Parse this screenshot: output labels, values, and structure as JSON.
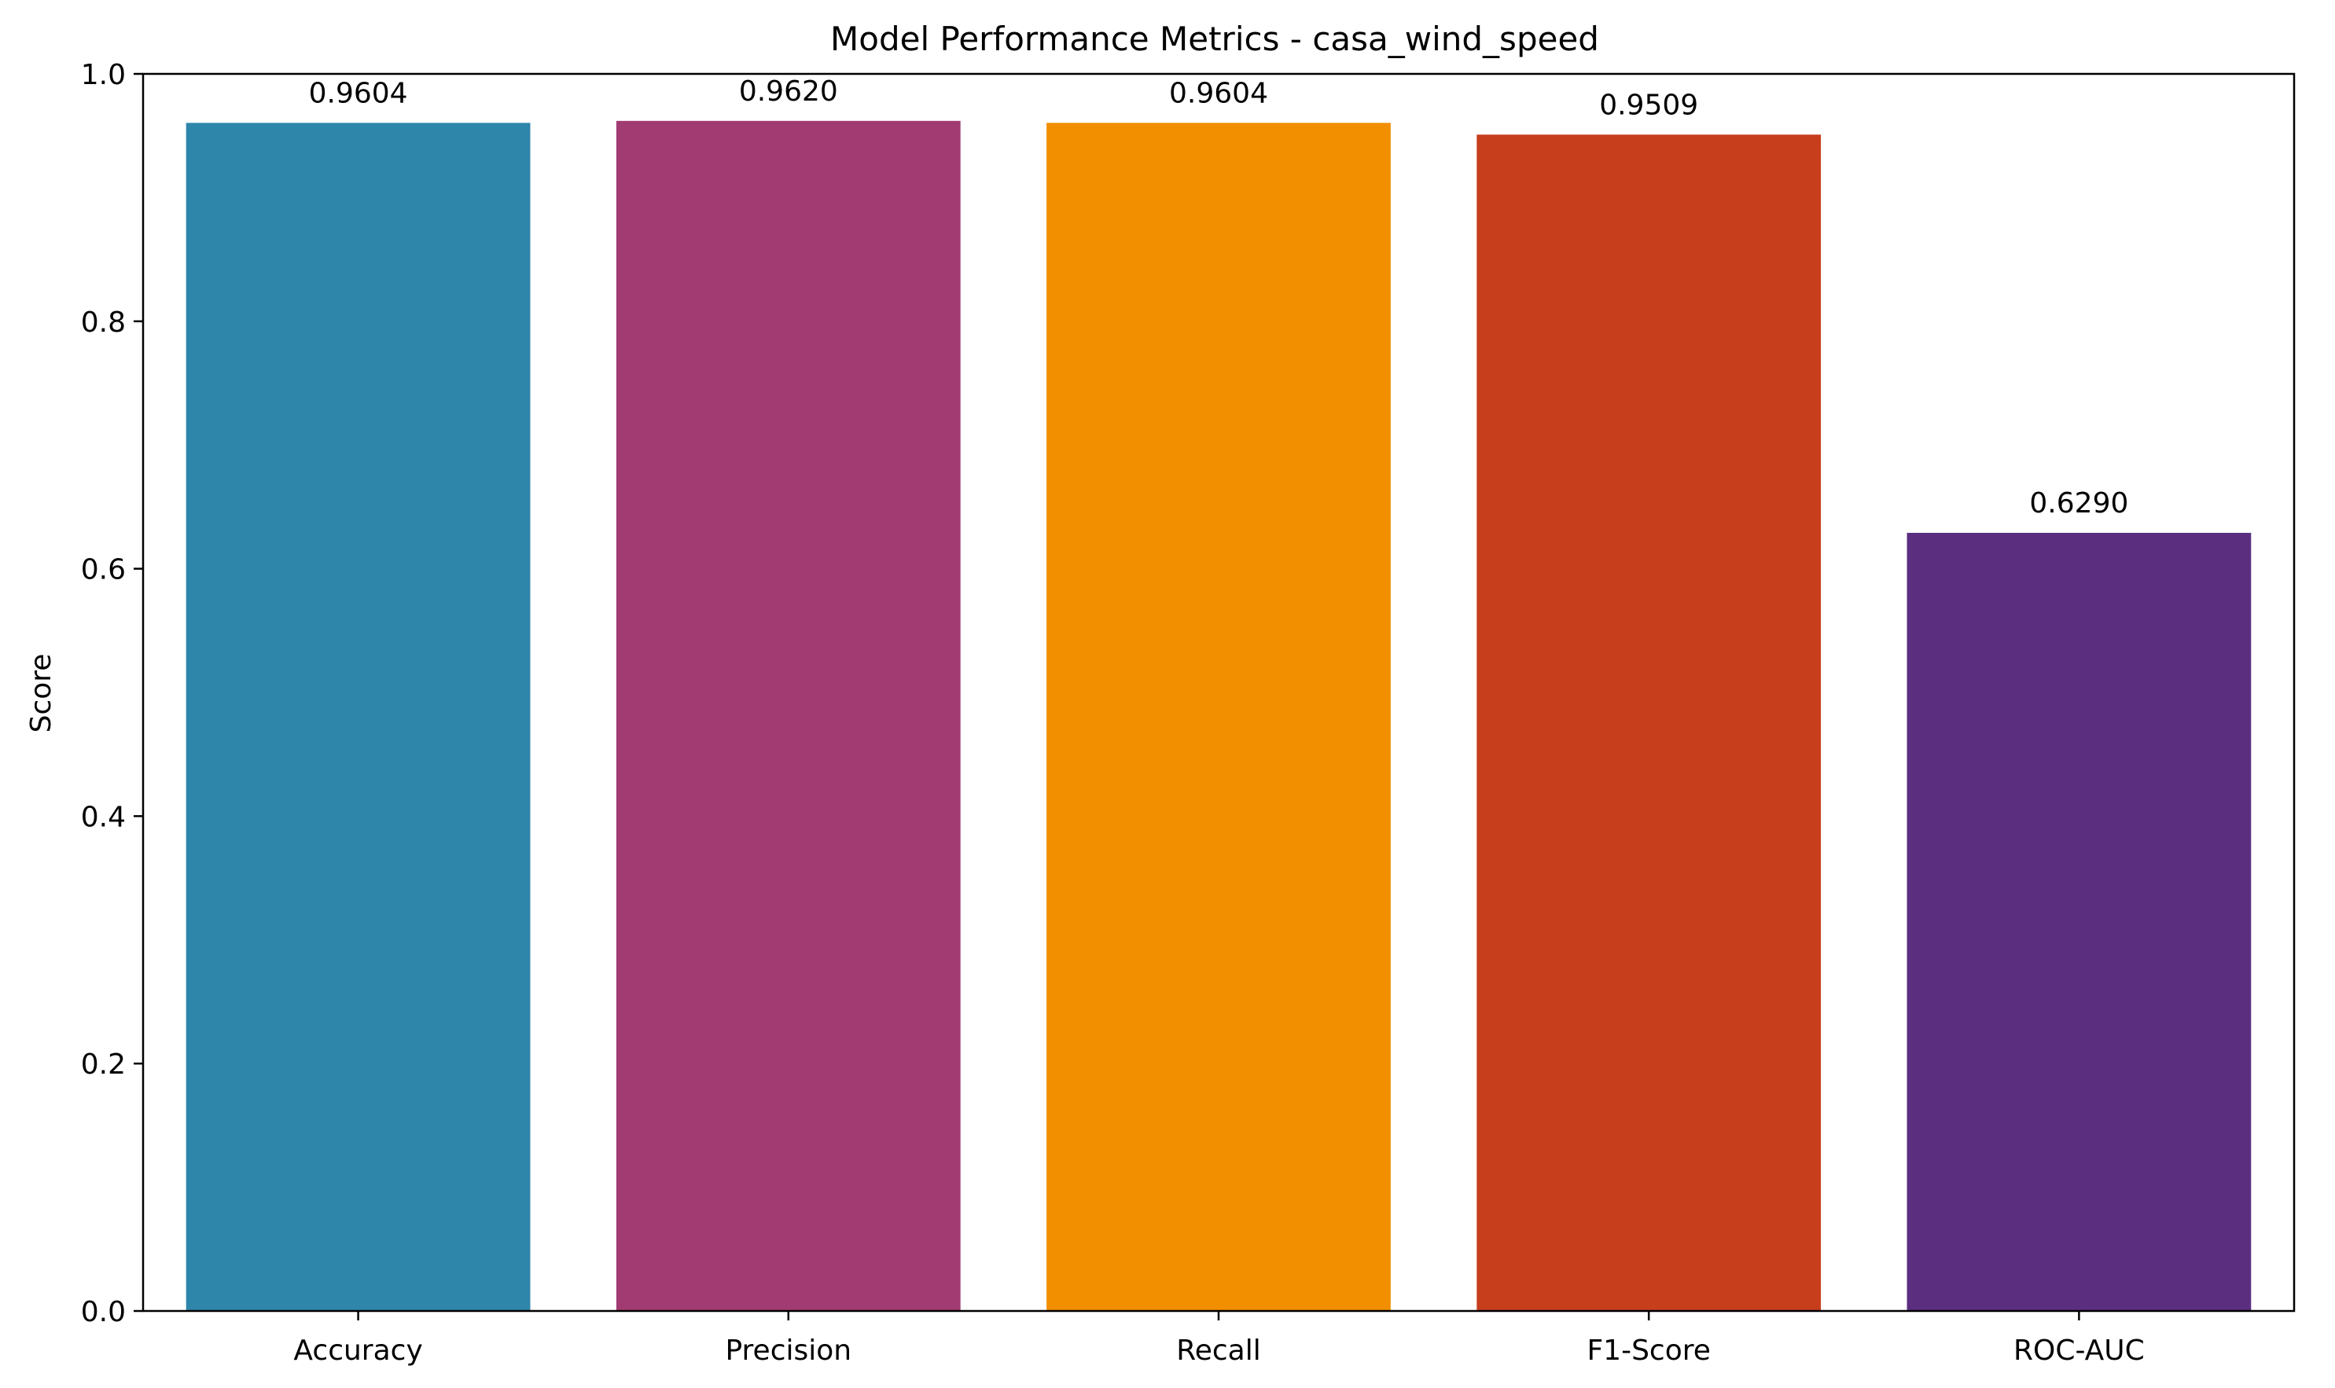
{
  "chart_data": {
    "type": "bar",
    "title": "Model Performance Metrics - casa_wind_speed",
    "xlabel": "",
    "ylabel": "Score",
    "ylim": [
      0,
      1
    ],
    "yticks": [
      "0.0",
      "0.2",
      "0.4",
      "0.6",
      "0.8",
      "1.0"
    ],
    "categories": [
      "Accuracy",
      "Precision",
      "Recall",
      "F1-Score",
      "ROC-AUC"
    ],
    "values": [
      0.9604,
      0.962,
      0.9604,
      0.9509,
      0.629
    ],
    "value_labels": [
      "0.9604",
      "0.9620",
      "0.9604",
      "0.9509",
      "0.6290"
    ],
    "colors": [
      "#2E86AB",
      "#A23B72",
      "#F18F01",
      "#C73E1D",
      "#5B2E80"
    ],
    "grid": false,
    "legend": "none"
  }
}
